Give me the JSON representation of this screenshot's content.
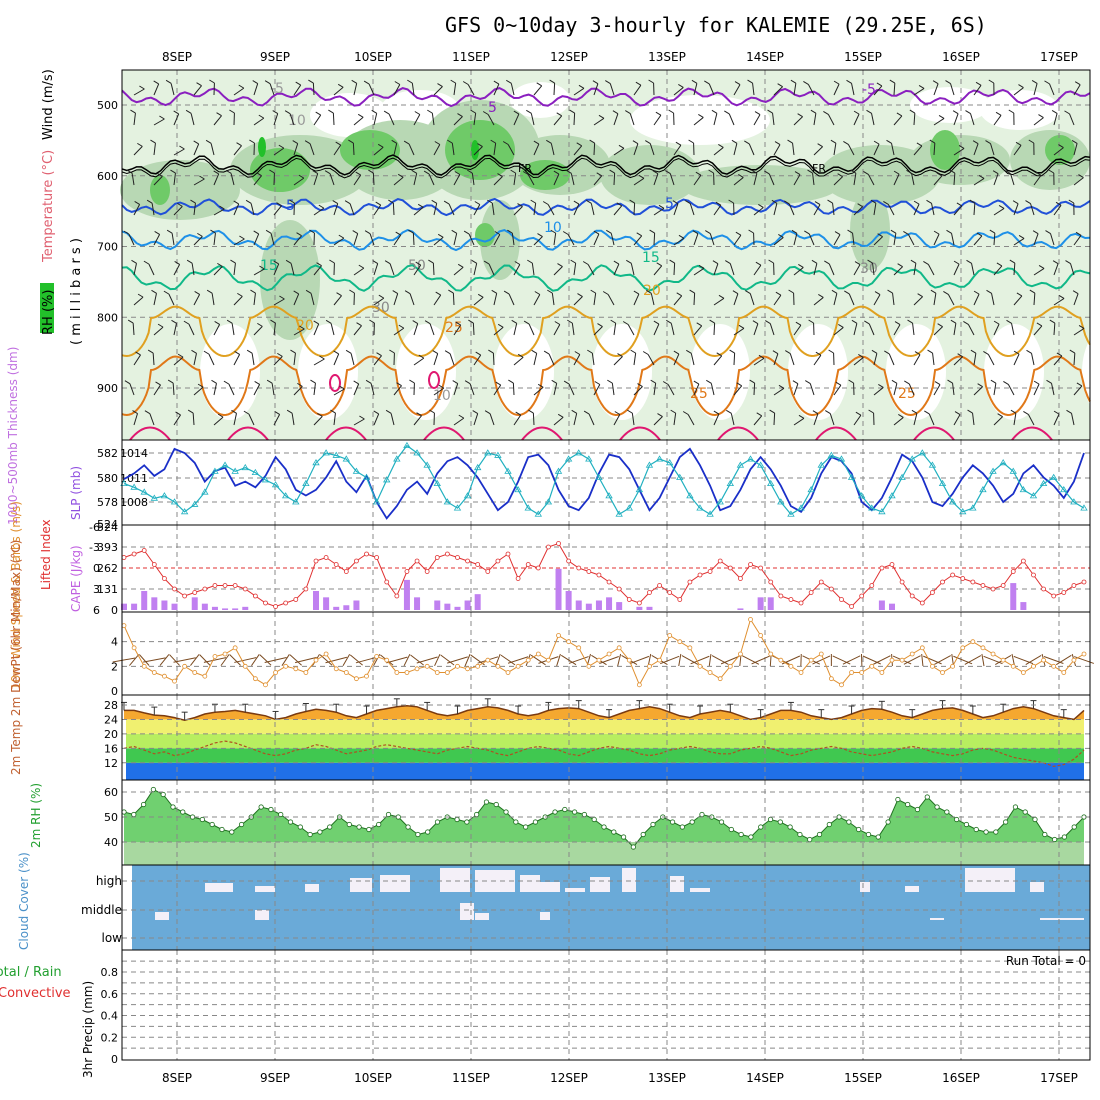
{
  "title": "GFS 0~10day 3-hourly for KALEMIE (29.25E, 6S)",
  "dates": [
    "8SEP",
    "9SEP",
    "10SEP",
    "11SEP",
    "12SEP",
    "13SEP",
    "14SEP",
    "15SEP",
    "16SEP",
    "17SEP"
  ],
  "colors": {
    "rh_light": "#e4f2e0",
    "rh_mid": "#b8d8b4",
    "rh_dark": "#6fca68",
    "rh_max": "#22c02a",
    "t_minus5": "#8a1fbf",
    "t_fr": "#000000",
    "t5": "#2050d8",
    "t10": "#1e90e8",
    "t15": "#10b888",
    "t20": "#e0a020",
    "t25": "#e07818",
    "t30": "#e01870",
    "slp": "#1a2fc8",
    "thick": "#20b0c0",
    "li": "#e03030",
    "cape": "#c080f0",
    "wind": "#e09030",
    "temp_fill": "#f5a830",
    "yellow": "#f0f070",
    "lgreen": "#b8ee60",
    "green": "#40c850",
    "blue": "#2070e8",
    "rh2m": "#70d070",
    "cloud": "#6aaad8",
    "cloudhi": "#f4f0f8"
  },
  "upper_panel": {
    "ylabel_rh": "RH (%)",
    "ylabel_temp": "Temperature (°C)",
    "ylabel_wind": "Wind (m/s)",
    "ylabel_mb": "( m i l l i b a r s )",
    "p_ticks": [
      "500",
      "600",
      "700",
      "800",
      "900"
    ],
    "contour_labels": [
      "-5",
      "5",
      "-5",
      "FR",
      "FR",
      "5",
      "5",
      "10",
      "15",
      "15",
      "20",
      "20",
      "25",
      "25",
      "25",
      "10",
      "50",
      "30",
      "30",
      "10"
    ]
  },
  "chart_data": [
    {
      "type": "line",
      "title": "",
      "x_labels": [
        "8SEP",
        "9SEP",
        "10SEP",
        "11SEP",
        "12SEP",
        "13SEP",
        "14SEP",
        "15SEP",
        "16SEP",
        "17SEP"
      ],
      "series": [
        {
          "name": "SLP (mb)",
          "values": [
            1010.8,
            1011.5,
            1012.5,
            1011.2,
            1012.0,
            1014.5,
            1014.0,
            1012.8,
            1010.5,
            1011.8,
            1012.2,
            1010.0,
            1010.5,
            1009.8,
            1011.2,
            1013.5,
            1012.0,
            1009.5,
            1008.8,
            1009.5,
            1011.0,
            1013.0,
            1010.5,
            1009.2,
            1011.2,
            1008.0,
            1006.0,
            1007.5,
            1009.5,
            1010.5,
            1009.0,
            1011.5,
            1013.0,
            1013.5,
            1012.5,
            1011.0,
            1009.0,
            1007.0,
            1008.0,
            1010.5,
            1013.5,
            1013.8,
            1012.5,
            1009.5,
            1007.5,
            1007.0,
            1008.5,
            1011.5,
            1013.8,
            1013.5,
            1012.0,
            1009.5,
            1007.0,
            1008.5,
            1011.0,
            1013.5,
            1014.5,
            1012.5,
            1010.0,
            1007.0,
            1007.5,
            1009.5,
            1012.0,
            1013.5,
            1012.0,
            1010.0,
            1007.5,
            1006.8,
            1008.5,
            1011.5,
            1013.5,
            1013.0,
            1011.5,
            1008.0,
            1007.0,
            1008.5,
            1011.0,
            1013.8,
            1013.0,
            1011.0,
            1008.0,
            1007.5,
            1009.0,
            1011.0,
            1012.5,
            1011.5,
            1010.0,
            1008.0,
            1009.0,
            1011.5,
            1012.5,
            1011.0,
            1010.0,
            1008.5,
            1010.5,
            1014.0
          ]
        },
        {
          "name": "1000~500mb Thickness (dm)",
          "values": [
            579.5,
            579.2,
            578.8,
            578.3,
            578.5,
            578.0,
            577.2,
            577.8,
            578.8,
            580.5,
            581.0,
            580.5,
            580.8,
            580.4,
            579.8,
            579.4,
            578.5,
            578.0,
            579.5,
            581.2,
            582.0,
            581.8,
            581.5,
            580.5,
            580.0,
            578.0,
            579.8,
            581.5,
            582.6,
            582.0,
            581.0,
            579.5,
            578.0,
            577.5,
            578.5,
            580.8,
            582.0,
            581.8,
            580.5,
            579.0,
            577.5,
            577.0,
            578.0,
            580.5,
            581.5,
            582.0,
            581.5,
            580.0,
            578.5,
            577.0,
            577.5,
            579.0,
            581.0,
            581.5,
            581.2,
            580.0,
            578.5,
            577.5,
            577.0,
            578.0,
            579.5,
            581.0,
            581.5,
            581.0,
            579.5,
            578.0,
            577.0,
            577.5,
            579.0,
            581.0,
            581.8,
            581.5,
            580.0,
            578.5,
            577.5,
            577.2,
            578.5,
            580.0,
            581.5,
            582.0,
            581.0,
            579.5,
            578.0,
            577.2,
            577.5,
            579.0,
            580.5,
            581.2,
            580.5,
            579.0,
            578.5,
            579.5,
            580.0,
            579.0,
            578.0,
            577.5
          ]
        }
      ],
      "y_ticks_left": [
        "582",
        "580",
        "578",
        "524"
      ],
      "y_ticks_right": [
        "1014",
        "1011",
        "1008"
      ],
      "ylabel_left": "1000~500mb Thickness (dm)",
      "ylabel_right": "SLP (mb)"
    },
    {
      "type": "bar",
      "title": "",
      "series": [
        {
          "name": "CAPE (J/kg)",
          "values": [
            40,
            40,
            120,
            80,
            60,
            40,
            0,
            80,
            40,
            20,
            10,
            10,
            20,
            0,
            0,
            0,
            0,
            0,
            0,
            120,
            80,
            20,
            30,
            60,
            0,
            0,
            0,
            0,
            190,
            80,
            0,
            60,
            40,
            20,
            60,
            100,
            0,
            0,
            0,
            0,
            0,
            0,
            0,
            260,
            120,
            60,
            40,
            60,
            80,
            50,
            0,
            20,
            20,
            0,
            0,
            0,
            0,
            0,
            0,
            0,
            0,
            10,
            0,
            80,
            80,
            0,
            0,
            0,
            0,
            0,
            0,
            0,
            0,
            0,
            0,
            60,
            40,
            0,
            0,
            0,
            0,
            0,
            0,
            0,
            0,
            0,
            0,
            0,
            170,
            50,
            0,
            0,
            0,
            0,
            0,
            0
          ]
        },
        {
          "name": "Lifted Index",
          "values": [
            -1.5,
            -2.0,
            -2.5,
            -0.5,
            1.5,
            3.0,
            4.0,
            3.5,
            3.0,
            2.5,
            2.5,
            2.5,
            3.0,
            4.0,
            5.0,
            5.5,
            5.0,
            4.5,
            3.0,
            -1.0,
            -1.5,
            -0.5,
            0.5,
            -1.0,
            -2.0,
            -1.5,
            2.0,
            4.0,
            0.5,
            -1.0,
            0.5,
            -1.5,
            -2.0,
            -1.5,
            -1.0,
            -0.5,
            0.5,
            -1.0,
            -2.0,
            1.5,
            -0.5,
            0.0,
            -3.0,
            -3.5,
            -1.0,
            0.0,
            0.5,
            1.0,
            2.0,
            3.0,
            4.5,
            5.0,
            3.5,
            2.5,
            3.5,
            4.5,
            2.0,
            1.0,
            0.5,
            -1.0,
            0.0,
            1.5,
            -0.5,
            0.0,
            2.0,
            4.0,
            4.5,
            5.0,
            3.5,
            2.0,
            3.0,
            4.5,
            5.5,
            4.0,
            2.5,
            0.0,
            -0.5,
            2.0,
            4.0,
            5.0,
            3.5,
            2.0,
            1.0,
            1.5,
            2.0,
            2.5,
            3.0,
            2.5,
            0.5,
            -1.0,
            1.0,
            3.0,
            4.0,
            3.5,
            2.5,
            2.0
          ]
        }
      ],
      "y_ticks_left": [
        "-6",
        "-3",
        "0",
        "3",
        "6"
      ],
      "y_ticks_right": [
        "524",
        "393",
        "262",
        "131",
        "0"
      ],
      "ylabel_left": "Lifted Index",
      "ylabel_right": "CAPE (J/kg)"
    },
    {
      "type": "line",
      "title": "",
      "series": [
        {
          "name": "10m Wind Speed",
          "values": [
            5.3,
            3.5,
            2.0,
            1.5,
            1.2,
            0.8,
            2.0,
            1.5,
            1.2,
            2.8,
            3.0,
            3.5,
            2.0,
            1.0,
            0.5,
            1.5,
            2.0,
            1.8,
            1.5,
            2.5,
            3.0,
            1.8,
            1.5,
            1.0,
            1.2,
            2.8,
            2.5,
            1.5,
            1.5,
            1.8,
            2.0,
            1.5,
            1.5,
            2.0,
            1.8,
            2.0,
            2.5,
            2.0,
            1.5,
            2.0,
            2.5,
            3.0,
            2.5,
            4.5,
            4.0,
            3.5,
            2.0,
            2.5,
            3.0,
            3.5,
            2.5,
            0.5,
            2.0,
            2.5,
            4.5,
            4.0,
            3.5,
            2.0,
            1.5,
            1.0,
            2.0,
            3.0,
            5.8,
            4.5,
            3.0,
            2.5,
            2.0,
            1.5,
            2.5,
            3.0,
            1.0,
            0.5,
            1.5,
            1.5,
            2.0,
            1.5,
            2.5,
            2.5,
            3.0,
            3.5,
            2.0,
            1.5,
            2.0,
            3.5,
            4.0,
            3.5,
            3.0,
            2.5,
            2.0,
            1.5,
            2.0,
            2.5,
            2.0,
            1.5,
            2.5,
            3.0
          ]
        }
      ],
      "y_ticks_left": [
        "0",
        "2",
        "4"
      ],
      "ylabel_left": "10m Wind Speed & Barbs (m/s)"
    },
    {
      "type": "area",
      "title": "",
      "series": [
        {
          "name": "2m Temp",
          "values": [
            26.5,
            26.5,
            25.8,
            25.2,
            25.0,
            24.5,
            23.8,
            24.5,
            25.5,
            26.0,
            26.2,
            26.5,
            26.0,
            25.5,
            25.0,
            24.0,
            24.5,
            25.5,
            26.2,
            26.8,
            26.5,
            26.0,
            25.0,
            24.5,
            25.5,
            26.5,
            27.0,
            27.5,
            27.8,
            27.5,
            26.5,
            25.5,
            25.0,
            25.5,
            26.5,
            27.0,
            27.5,
            27.2,
            26.5,
            25.5,
            25.0,
            25.5,
            26.5,
            27.0,
            27.2,
            27.0,
            26.0,
            25.0,
            24.5,
            25.5,
            26.5,
            27.0,
            27.5,
            27.0,
            26.0,
            25.0,
            24.5,
            25.5,
            26.0,
            26.5,
            26.0,
            25.0,
            24.0,
            24.5,
            25.5,
            26.5,
            26.5,
            26.0,
            25.0,
            24.5,
            24.0,
            24.5,
            25.5,
            26.5,
            27.0,
            26.8,
            26.0,
            25.0,
            24.5,
            25.5,
            26.5,
            27.0,
            27.2,
            26.5,
            25.5,
            24.5,
            25.0,
            26.0,
            27.0,
            27.5,
            27.0,
            26.0,
            25.0,
            24.5,
            24.0,
            26.5
          ]
        },
        {
          "name": "2m DewPt",
          "values": [
            16.0,
            16.5,
            15.5,
            14.5,
            15.0,
            14.0,
            14.5,
            15.5,
            16.5,
            17.5,
            18.0,
            17.5,
            16.5,
            15.5,
            14.5,
            14.0,
            14.5,
            15.5,
            16.0,
            17.0,
            16.5,
            15.5,
            14.5,
            15.0,
            15.5,
            16.5,
            17.0,
            16.5,
            16.0,
            15.5,
            15.0,
            14.5,
            15.5,
            16.0,
            16.5,
            16.0,
            15.5,
            14.5,
            14.0,
            15.0,
            16.0,
            16.5,
            16.0,
            15.5,
            14.5,
            14.0,
            15.0,
            16.0,
            16.5,
            16.0,
            15.5,
            14.5,
            14.0,
            14.5,
            15.5,
            16.0,
            16.5,
            16.0,
            15.0,
            14.5,
            14.5,
            15.5,
            16.0,
            16.5,
            16.0,
            15.0,
            14.0,
            14.5,
            15.5,
            16.0,
            16.5,
            16.0,
            15.0,
            14.5,
            14.0,
            14.5,
            15.0,
            16.0,
            16.5,
            16.0,
            15.0,
            14.5,
            14.0,
            14.5,
            15.5,
            16.0,
            15.5,
            14.5,
            13.5,
            13.0,
            12.5,
            12.0,
            11.0,
            11.5,
            13.0,
            15.5
          ]
        }
      ],
      "y_ticks_left": [
        "28",
        "24",
        "20",
        "16",
        "12"
      ],
      "ylabel_left": "2m Temp 2m DewPt (6hr Min/Max) (°C)"
    },
    {
      "type": "area",
      "title": "",
      "series": [
        {
          "name": "2m RH",
          "values": [
            52,
            51,
            55,
            61,
            59,
            54,
            52,
            50,
            49,
            47,
            45,
            44,
            47,
            50,
            54,
            53,
            51,
            48,
            46,
            43,
            44,
            46,
            50,
            47,
            46,
            45,
            47,
            51,
            50,
            46,
            43,
            44,
            48,
            50,
            49,
            48,
            51,
            56,
            55,
            52,
            48,
            46,
            48,
            50,
            52,
            53,
            52,
            51,
            49,
            46,
            44,
            42,
            38,
            43,
            47,
            50,
            48,
            46,
            48,
            51,
            50,
            48,
            45,
            43,
            42,
            46,
            49,
            48,
            46,
            43,
            41,
            43,
            47,
            50,
            48,
            45,
            43,
            42,
            48,
            57,
            55,
            53,
            58,
            54,
            52,
            49,
            47,
            45,
            44,
            44,
            48,
            54,
            52,
            49,
            43,
            41,
            42,
            46,
            50
          ]
        }
      ],
      "y_ticks_left": [
        "60",
        "50",
        "40"
      ],
      "ylabel_left": "2m RH (%)"
    },
    {
      "type": "bar",
      "title": "",
      "y_ticks_left": [
        "high",
        "middle",
        "low"
      ],
      "ylabel_left": "Cloud Cover (%)"
    },
    {
      "type": "bar",
      "title": "",
      "annotation": "Run Total = 0",
      "y_ticks_left": [
        "0.8",
        "0.6",
        "0.4",
        "0.2",
        "0"
      ],
      "ylabel_left": "3hr Precip (mm)",
      "legend_1": "Total / Rain",
      "legend_2": "Convective",
      "series": [
        {
          "name": "Total / Rain",
          "values": []
        }
      ]
    }
  ]
}
